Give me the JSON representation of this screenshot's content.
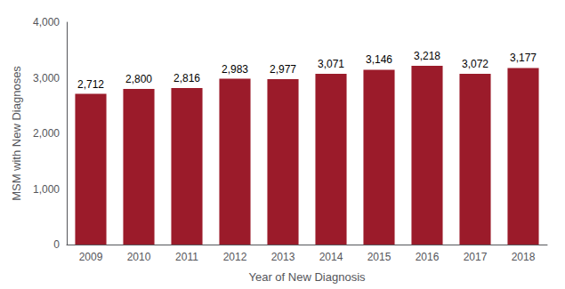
{
  "chart_data": {
    "type": "bar",
    "categories": [
      "2009",
      "2010",
      "2011",
      "2012",
      "2013",
      "2014",
      "2015",
      "2016",
      "2017",
      "2018"
    ],
    "values": [
      2712,
      2800,
      2816,
      2983,
      2977,
      3071,
      3146,
      3218,
      3072,
      3177
    ],
    "value_labels": [
      "2,712",
      "2,800",
      "2,816",
      "2,983",
      "2,977",
      "3,071",
      "3,146",
      "3,218",
      "3,072",
      "3,177"
    ],
    "data_labels": true,
    "color": "#9B1B2A",
    "xlabel": "Year of New Diagnosis",
    "ylabel": "MSM with New Diagnoses",
    "ylim": [
      0,
      4000
    ],
    "yticks": [
      0,
      {
        "value": 1000,
        "label": "1,000"
      },
      {
        "value": 2000,
        "label": "2,000"
      },
      {
        "value": 3000,
        "label": "3,000"
      },
      {
        "value": 4000,
        "label": "4,000"
      }
    ],
    "grid": false
  }
}
